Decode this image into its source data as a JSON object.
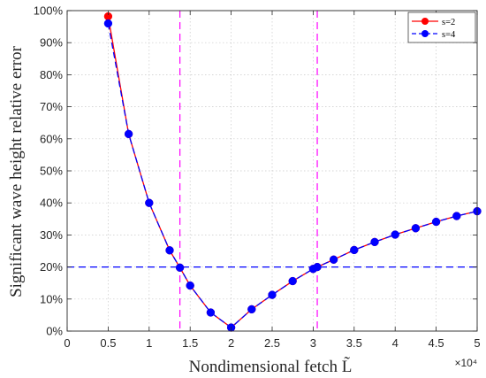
{
  "chart_data": {
    "type": "line",
    "title": "",
    "xlabel": "Nondimensional fetch L̃",
    "ylabel": "Significant wave height relative error",
    "x_multiplier": "×10⁴",
    "xlim": [
      0,
      5
    ],
    "ylim": [
      0,
      100
    ],
    "x_ticks": [
      "0",
      "0.5",
      "1",
      "1.5",
      "2",
      "2.5",
      "3",
      "3.5",
      "4",
      "4.5",
      "5"
    ],
    "y_ticks": [
      "0%",
      "10%",
      "20%",
      "30%",
      "40%",
      "50%",
      "60%",
      "70%",
      "80%",
      "90%",
      "100%"
    ],
    "grid": true,
    "legend_position": "top-right",
    "series": [
      {
        "name": "s=2",
        "color": "#ff0000",
        "line_style": "solid",
        "x": [
          0.5,
          0.75,
          1.0,
          1.25,
          1.375,
          1.5,
          1.75,
          2.0,
          2.25,
          2.5,
          2.75,
          3.0,
          3.05,
          3.25,
          3.5,
          3.75,
          4.0,
          4.25,
          4.5,
          4.75,
          5.0
        ],
        "y": [
          98.2,
          61.5,
          40.0,
          25.2,
          19.8,
          14.2,
          5.8,
          1.1,
          6.8,
          11.3,
          15.6,
          19.4,
          20.0,
          22.3,
          25.3,
          27.8,
          30.1,
          32.1,
          34.1,
          35.9,
          37.4
        ]
      },
      {
        "name": "s=4",
        "color": "#0000ff",
        "line_style": "dashed",
        "x": [
          0.5,
          0.75,
          1.0,
          1.25,
          1.375,
          1.5,
          1.75,
          2.0,
          2.25,
          2.5,
          2.75,
          3.0,
          3.05,
          3.25,
          3.5,
          3.75,
          4.0,
          4.25,
          4.5,
          4.75,
          5.0
        ],
        "y": [
          96.0,
          61.5,
          40.0,
          25.2,
          19.8,
          14.2,
          5.8,
          1.1,
          6.8,
          11.3,
          15.6,
          19.4,
          20.0,
          22.3,
          25.3,
          27.8,
          30.1,
          32.1,
          34.1,
          35.9,
          37.4
        ]
      }
    ],
    "reference_lines": [
      {
        "orientation": "horizontal",
        "value": 20,
        "color": "#0000ff",
        "line_style": "dashed"
      },
      {
        "orientation": "vertical",
        "value": 1.375,
        "color": "#ff00ff",
        "line_style": "dashed"
      },
      {
        "orientation": "vertical",
        "value": 3.05,
        "color": "#ff00ff",
        "line_style": "dashed"
      }
    ]
  }
}
